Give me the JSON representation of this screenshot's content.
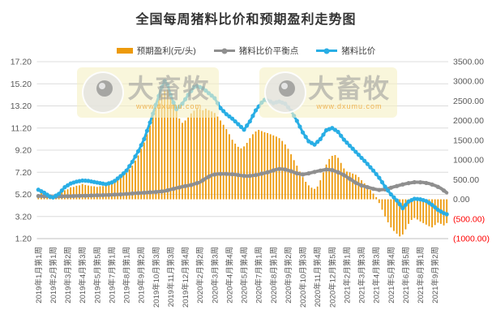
{
  "title": "全国每周猪料比价和预期盈利走势图",
  "legend": [
    {
      "label": "预期盈利(元/头)",
      "type": "bar",
      "color": "#ED9A0C"
    },
    {
      "label": "猪料比价平衡点",
      "type": "line",
      "color": "#8F8F8F"
    },
    {
      "label": "猪料比价",
      "type": "line",
      "color": "#29AEE5"
    }
  ],
  "watermark": {
    "brand": "大畜牧",
    "url": "www.dxumu.com"
  },
  "axes": {
    "left_ticks": [
      "17.20",
      "15.20",
      "13.20",
      "11.20",
      "9.20",
      "7.20",
      "5.20",
      "3.20",
      "1.20"
    ],
    "right_ticks": [
      "3500.00",
      "3000.00",
      "2500.00",
      "2000.00",
      "1500.00",
      "1000.00",
      "500.00",
      "0.00",
      "(500.00)",
      "(1000.00)"
    ],
    "tick_color": "#595959",
    "negative_color": "#FF0000",
    "grid_color": "#DCDCDC",
    "baseline_color": "#BFBFBF"
  },
  "chart_data": {
    "type": "combo",
    "title": "全国每周猪料比价和预期盈利走势图",
    "x_tick_every": 5,
    "categories": [
      "2019年1月第1周",
      "2019年2月第1周",
      "2019年3月第2周",
      "2019年4月第3周",
      "2019年5月第5周",
      "2019年7月第1周",
      "2019年8月第1周",
      "2019年9月第2周",
      "2019年10月第3周",
      "2019年11月第3周",
      "2019年12月第4周",
      "2020年2月第2周",
      "2020年3月第3周",
      "2020年4月第4周",
      "2020年5月第4周",
      "2020年7月第1周",
      "2020年8月第1周",
      "2020年9月第2周",
      "2020年10月第3周",
      "2020年11月第4周",
      "2020年12月第5周",
      "2021年2月第1周",
      "2021年3月第3周",
      "2021年4月第3周",
      "2021年5月第4周",
      "2021年6月第5周",
      "2021年8月第1周",
      "2021年9月第2周"
    ],
    "left_axis": {
      "min": 1.2,
      "max": 17.2,
      "step": 2,
      "labels_fmt": "x.20"
    },
    "right_axis": {
      "min": -1000,
      "max": 3500,
      "step": 500
    },
    "grid": true,
    "legend_position": "top",
    "series": [
      {
        "name": "预期盈利(元/头)",
        "type": "bar",
        "axis": "right",
        "color": "#ED9A0C",
        "values": [
          130,
          165,
          145,
          95,
          55,
          40,
          85,
          125,
          175,
          230,
          255,
          305,
          315,
          345,
          355,
          390,
          365,
          350,
          335,
          330,
          315,
          330,
          335,
          365,
          385,
          425,
          445,
          505,
          555,
          625,
          675,
          765,
          855,
          985,
          1115,
          1285,
          1445,
          1655,
          1875,
          2125,
          2345,
          2555,
          2675,
          2765,
          2795,
          2695,
          2475,
          2245,
          2055,
          1945,
          2005,
          2085,
          2185,
          2255,
          2325,
          2295,
          2265,
          2305,
          2265,
          2235,
          2195,
          2105,
          2005,
          1895,
          1785,
          1655,
          1515,
          1415,
          1335,
          1295,
          1345,
          1435,
          1555,
          1655,
          1725,
          1765,
          1735,
          1705,
          1685,
          1655,
          1625,
          1595,
          1555,
          1485,
          1395,
          1285,
          1145,
          995,
          855,
          705,
          565,
          445,
          355,
          295,
          265,
          325,
          485,
          685,
          885,
          1025,
          1105,
          1125,
          1055,
          925,
          785,
          705,
          685,
          655,
          625,
          565,
          485,
          405,
          325,
          235,
          145,
          55,
          -95,
          -265,
          -435,
          -585,
          -715,
          -805,
          -875,
          -945,
          -895,
          -765,
          -625,
          -525,
          -475,
          -515,
          -565,
          -605,
          -645,
          -685,
          -715,
          -655,
          -595,
          -625,
          -665,
          -605
        ]
      },
      {
        "name": "猪料比价平衡点",
        "type": "line",
        "axis": "left",
        "color": "#8F8F8F",
        "values": [
          5.05,
          5.04,
          5.03,
          5.02,
          5.01,
          5.0,
          5.0,
          5.01,
          5.02,
          5.03,
          5.03,
          5.04,
          5.05,
          5.06,
          5.07,
          5.08,
          5.08,
          5.09,
          5.1,
          5.11,
          5.12,
          5.12,
          5.13,
          5.14,
          5.15,
          5.16,
          5.18,
          5.19,
          5.2,
          5.22,
          5.24,
          5.26,
          5.28,
          5.3,
          5.32,
          5.33,
          5.35,
          5.37,
          5.39,
          5.4,
          5.42,
          5.45,
          5.47,
          5.5,
          5.57,
          5.63,
          5.7,
          5.77,
          5.83,
          5.9,
          5.95,
          6.0,
          6.05,
          6.13,
          6.22,
          6.3,
          6.48,
          6.65,
          6.8,
          6.95,
          7.0,
          7.05,
          7.05,
          7.05,
          7.05,
          7.03,
          7.02,
          7.0,
          6.95,
          6.9,
          6.88,
          6.85,
          6.88,
          6.9,
          6.95,
          7.0,
          7.07,
          7.13,
          7.2,
          7.28,
          7.37,
          7.45,
          7.5,
          7.48,
          7.45,
          7.38,
          7.3,
          7.2,
          7.1,
          7.05,
          7.0,
          7.05,
          7.1,
          7.17,
          7.23,
          7.3,
          7.35,
          7.4,
          7.45,
          7.43,
          7.4,
          7.3,
          7.2,
          7.08,
          6.95,
          6.78,
          6.6,
          6.43,
          6.25,
          6.13,
          6.0,
          5.93,
          5.85,
          5.78,
          5.7,
          5.65,
          5.6,
          5.63,
          5.65,
          5.73,
          5.8,
          5.88,
          5.95,
          6.03,
          6.1,
          6.16,
          6.22,
          6.26,
          6.3,
          6.3,
          6.29,
          6.28,
          6.23,
          6.18,
          6.09,
          6.0,
          5.88,
          5.75,
          5.55,
          5.35
        ]
      },
      {
        "name": "猪料比价",
        "type": "line",
        "axis": "left",
        "color": "#29AEE5",
        "values": [
          5.62,
          5.49,
          5.35,
          5.17,
          4.98,
          4.92,
          5.09,
          5.25,
          5.55,
          5.85,
          6.02,
          6.18,
          6.27,
          6.35,
          6.4,
          6.45,
          6.44,
          6.42,
          6.37,
          6.32,
          6.27,
          6.22,
          6.17,
          6.12,
          6.2,
          6.28,
          6.42,
          6.64,
          6.85,
          7.1,
          7.35,
          7.75,
          8.15,
          8.63,
          9.1,
          9.65,
          10.2,
          10.95,
          11.7,
          12.5,
          13.3,
          14.1,
          14.9,
          15.45,
          15.1,
          14.2,
          13.5,
          12.9,
          13.15,
          13.4,
          13.8,
          14.2,
          14.55,
          14.9,
          15.0,
          14.9,
          14.8,
          14.58,
          14.35,
          14.13,
          13.9,
          13.45,
          13.0,
          12.73,
          12.45,
          12.25,
          12.05,
          11.8,
          11.55,
          11.3,
          11.05,
          11.43,
          11.8,
          12.3,
          12.8,
          13.15,
          13.5,
          13.75,
          13.68,
          13.6,
          13.45,
          13.53,
          13.6,
          13.5,
          13.4,
          13.08,
          12.75,
          12.3,
          11.85,
          11.33,
          10.8,
          10.4,
          10.0,
          9.85,
          9.7,
          9.95,
          10.2,
          10.6,
          11.0,
          11.1,
          11.2,
          11.03,
          10.85,
          10.5,
          10.15,
          9.88,
          9.6,
          9.33,
          9.05,
          8.78,
          8.5,
          8.23,
          7.95,
          7.65,
          7.35,
          7.03,
          6.7,
          6.3,
          5.9,
          5.55,
          5.2,
          4.93,
          4.65,
          4.3,
          3.95,
          4.25,
          4.55,
          4.68,
          4.8,
          4.78,
          4.75,
          4.68,
          4.6,
          4.43,
          4.25,
          4.03,
          3.8,
          3.65,
          3.5,
          3.4
        ]
      }
    ]
  }
}
